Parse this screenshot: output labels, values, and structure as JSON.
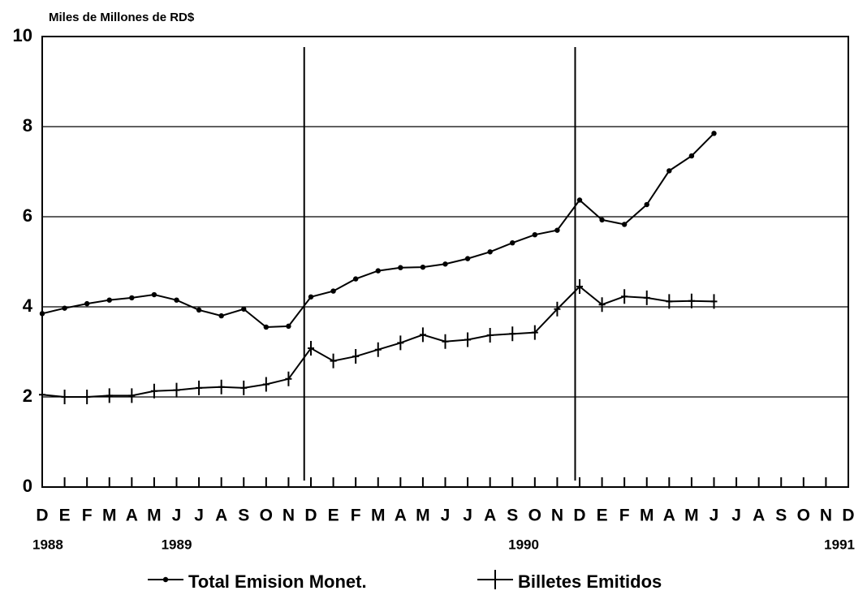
{
  "chart_data": {
    "type": "line",
    "title": "Miles de Millones de RD$",
    "categories": [
      "D",
      "E",
      "F",
      "M",
      "A",
      "M",
      "J",
      "J",
      "A",
      "S",
      "O",
      "N",
      "D",
      "E",
      "F",
      "M",
      "A",
      "M",
      "J",
      "J",
      "A",
      "S",
      "O",
      "N",
      "D",
      "E",
      "F",
      "M",
      "A",
      "M",
      "J",
      "J",
      "A",
      "S",
      "O",
      "N",
      "D"
    ],
    "year_labels": [
      "1988",
      "1989",
      "1990",
      "1991"
    ],
    "series": [
      {
        "name": "Total Emision Monet.",
        "color": "#000000",
        "marker": "dot",
        "values": [
          3.85,
          3.97,
          4.07,
          4.15,
          4.2,
          4.27,
          4.15,
          3.93,
          3.8,
          3.95,
          3.55,
          3.57,
          4.22,
          4.35,
          4.62,
          4.8,
          4.87,
          4.88,
          4.95,
          5.07,
          5.22,
          5.42,
          5.6,
          5.7,
          6.37,
          5.93,
          5.83,
          6.27,
          7.02,
          7.35,
          7.85,
          null,
          null,
          null,
          null,
          null,
          null
        ]
      },
      {
        "name": "Billetes Emitidos",
        "color": "#000000",
        "marker": "plus",
        "values": [
          2.05,
          2.0,
          2.0,
          2.03,
          2.03,
          2.13,
          2.15,
          2.2,
          2.22,
          2.2,
          2.28,
          2.4,
          3.08,
          2.8,
          2.9,
          3.05,
          3.2,
          3.38,
          3.23,
          3.27,
          3.37,
          3.4,
          3.43,
          3.95,
          4.45,
          4.05,
          4.23,
          4.2,
          4.12,
          4.13,
          4.12,
          null,
          null,
          null,
          null,
          null,
          null
        ]
      }
    ],
    "ylim": [
      0,
      10
    ],
    "yticks": [
      0,
      2,
      4,
      6,
      8,
      10
    ],
    "grid": true
  }
}
